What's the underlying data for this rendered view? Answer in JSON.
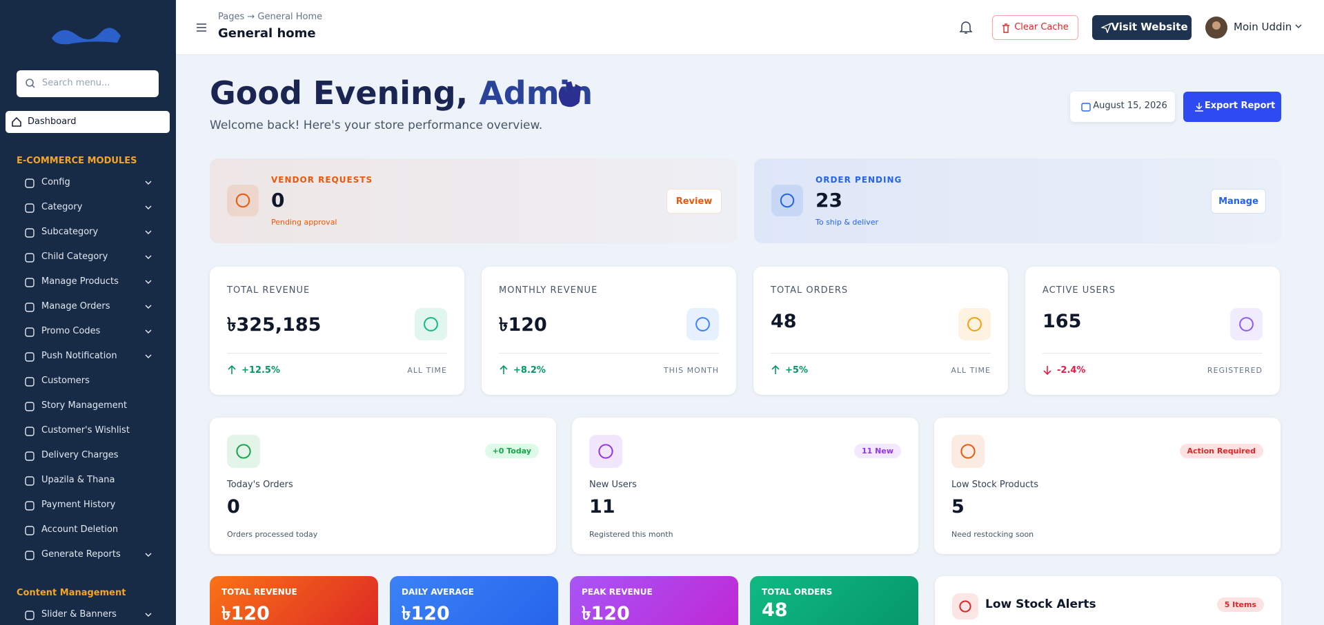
{
  "sidebar": {
    "search_placeholder": "Search menu...",
    "active": "Dashboard",
    "sections": [
      {
        "title": "E-COMMERCE MODULES",
        "items": [
          {
            "label": "Config",
            "expandable": true
          },
          {
            "label": "Category",
            "expandable": true
          },
          {
            "label": "Subcategory",
            "expandable": true
          },
          {
            "label": "Child Category",
            "expandable": true
          },
          {
            "label": "Manage Products",
            "expandable": true
          },
          {
            "label": "Manage Orders",
            "expandable": true
          },
          {
            "label": "Promo Codes",
            "expandable": true
          },
          {
            "label": "Push Notification",
            "expandable": true
          },
          {
            "label": "Customers",
            "expandable": false
          },
          {
            "label": "Story Management",
            "expandable": false
          },
          {
            "label": "Customer's Wishlist",
            "expandable": false
          },
          {
            "label": "Delivery Charges",
            "expandable": false
          },
          {
            "label": "Upazila & Thana",
            "expandable": false
          },
          {
            "label": "Payment History",
            "expandable": false
          },
          {
            "label": "Account Deletion",
            "expandable": false
          },
          {
            "label": "Generate Reports",
            "expandable": true
          }
        ]
      },
      {
        "title": "Content Management",
        "items": [
          {
            "label": "Slider & Banners",
            "expandable": true
          }
        ]
      }
    ]
  },
  "header": {
    "breadcrumb": [
      "Pages",
      "General Home"
    ],
    "title": "General home",
    "clear_cache": "Clear Cache",
    "visit_website": "Visit Website",
    "user": "Moin Uddin"
  },
  "hero": {
    "greeting": "Good Evening,",
    "name": "Admin",
    "subtitle": "Welcome back! Here's your store performance overview.",
    "date": "August 15, 2026",
    "export": "Export Report"
  },
  "alerts": [
    {
      "label": "VENDOR REQUESTS",
      "value": "0",
      "note": "Pending approval",
      "action": "Review",
      "color": "#ea580c"
    },
    {
      "label": "ORDER PENDING",
      "value": "23",
      "note": "To ship & deliver",
      "action": "Manage",
      "color": "#2563eb"
    }
  ],
  "stats": [
    {
      "label": "TOTAL REVENUE",
      "value": "৳325,185",
      "change": "+12.5%",
      "period": "ALL TIME",
      "trend": "up",
      "color": "#10b981"
    },
    {
      "label": "MONTHLY REVENUE",
      "value": "৳120",
      "change": "+8.2%",
      "period": "THIS MONTH",
      "trend": "up",
      "color": "#3b82f6"
    },
    {
      "label": "TOTAL ORDERS",
      "value": "48",
      "change": "+5%",
      "period": "ALL TIME",
      "trend": "up",
      "color": "#f59e0b"
    },
    {
      "label": "ACTIVE USERS",
      "value": "165",
      "change": "-2.4%",
      "period": "REGISTERED",
      "trend": "down",
      "color": "#8b5cf6"
    }
  ],
  "activity": [
    {
      "badge": "+0 Today",
      "label": "Today's Orders",
      "value": "0",
      "note": "Orders processed today",
      "color": "#16a34a",
      "badge_bg": "#dcfce7"
    },
    {
      "badge": "11 New",
      "label": "New Users",
      "value": "11",
      "note": "Registered this month",
      "color": "#9333ea",
      "badge_bg": "#f3e8ff"
    },
    {
      "badge": "Action Required",
      "label": "Low Stock Products",
      "value": "5",
      "note": "Need restocking soon",
      "color": "#ea580c",
      "badge_bg": "#fee2e2"
    }
  ],
  "gradient_cards": [
    {
      "label": "TOTAL REVENUE",
      "value": "৳120",
      "from": "#f97316",
      "to": "#dc2626"
    },
    {
      "label": "DAILY AVERAGE",
      "value": "৳120",
      "from": "#3b82f6",
      "to": "#2563eb"
    },
    {
      "label": "PEAK REVENUE",
      "value": "৳120",
      "from": "#a855f7",
      "to": "#c026d3"
    },
    {
      "label": "TOTAL ORDERS",
      "value": "48",
      "from": "#10b981",
      "to": "#059669"
    }
  ],
  "low_stock": {
    "title": "Low Stock Alerts",
    "badge": "5 Items"
  }
}
